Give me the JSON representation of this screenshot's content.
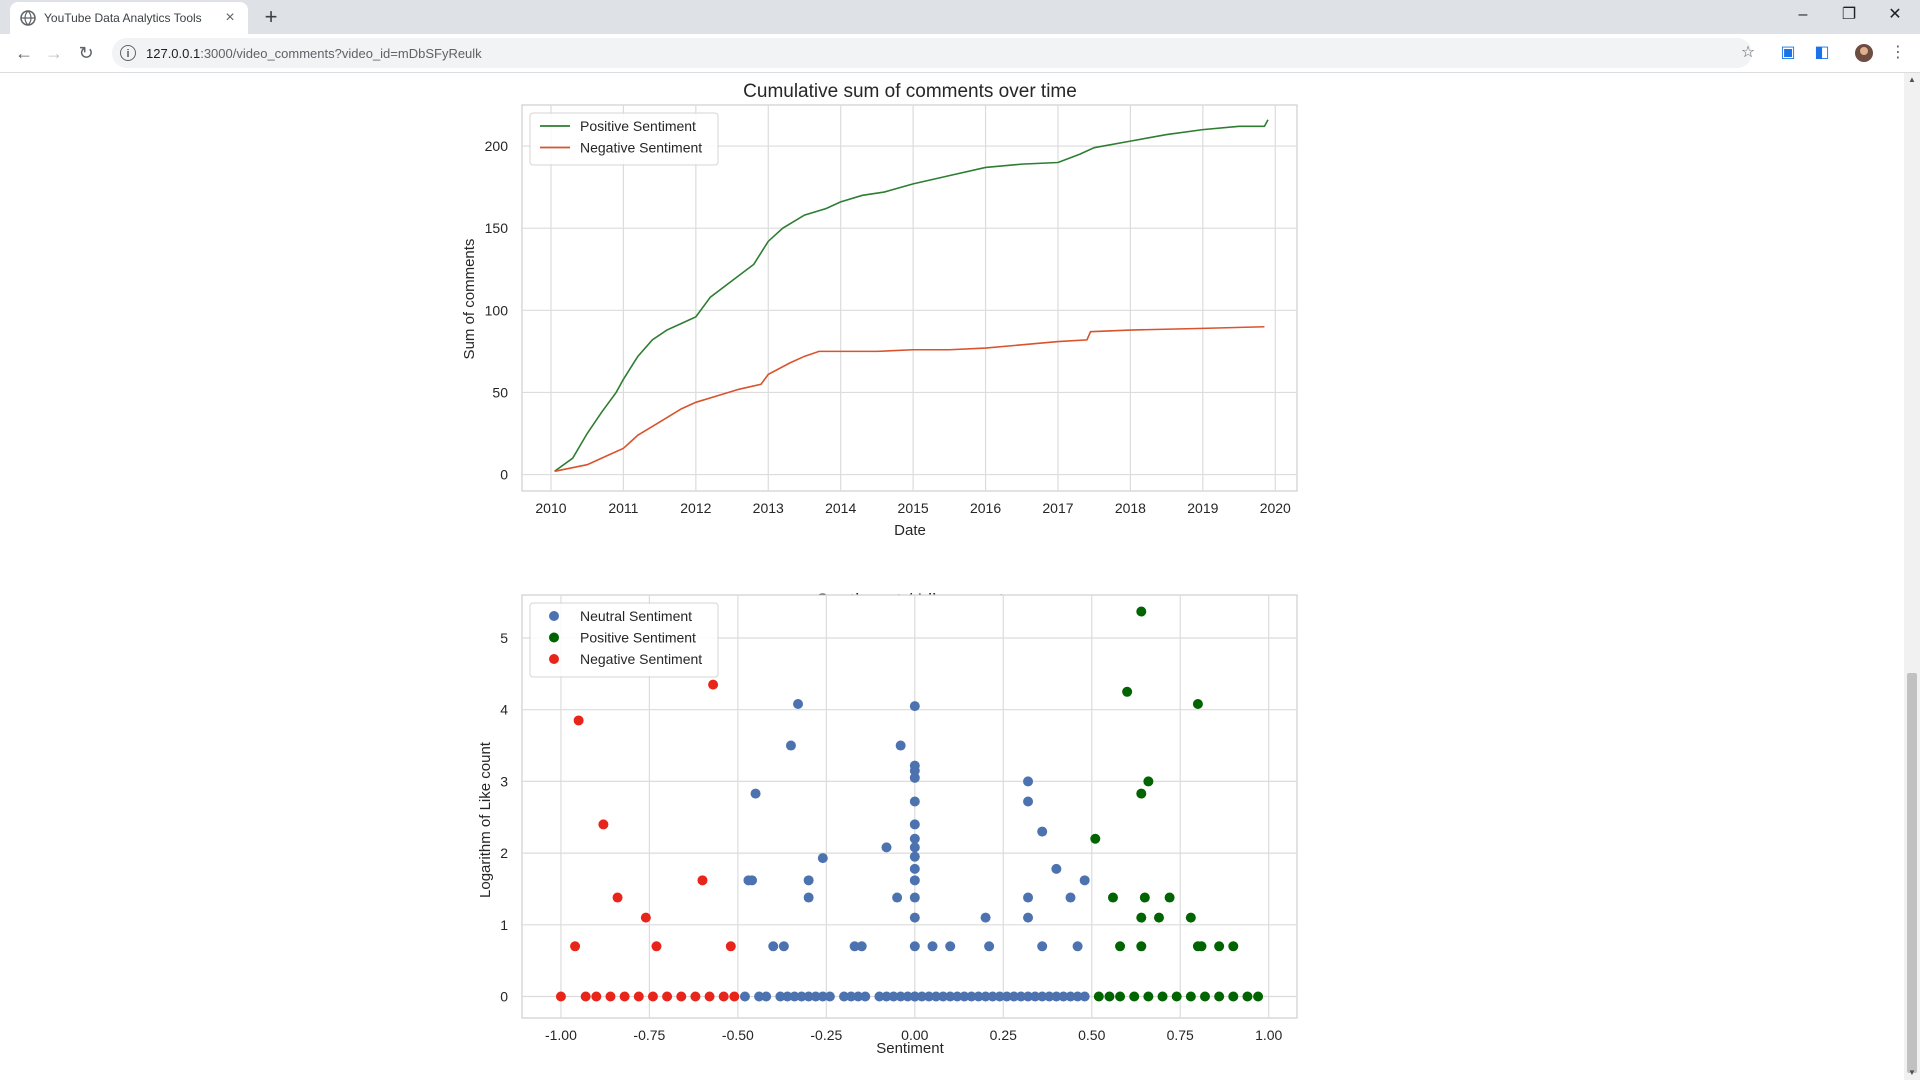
{
  "browser": {
    "tab_title": "YouTube Data Analytics Tools",
    "url_host": "127.0.0.1",
    "url_path": ":3000/video_comments?video_id=mDbSFyReulk"
  },
  "charts": [
    {
      "title": "Cumulative sum of comments over time",
      "xlabel": "Date",
      "ylabel": "Sum of comments",
      "legend": [
        "Positive Sentiment",
        "Negative Sentiment"
      ]
    },
    {
      "title": "Sentiment / Like count",
      "xlabel": "Sentiment",
      "ylabel": "Logarithm of Like count",
      "legend": [
        "Neutral Sentiment",
        "Positive Sentiment",
        "Negative Sentiment"
      ]
    }
  ],
  "chart_data": [
    {
      "type": "line",
      "title": "Cumulative sum of comments over time",
      "xlabel": "Date",
      "ylabel": "Sum of comments",
      "xlim": [
        2009.6,
        2020.3
      ],
      "ylim": [
        -10,
        225
      ],
      "xticks": [
        "2010",
        "2011",
        "2012",
        "2013",
        "2014",
        "2015",
        "2016",
        "2017",
        "2018",
        "2019",
        "2020"
      ],
      "yticks": [
        0,
        50,
        100,
        150,
        200
      ],
      "grid": true,
      "legend_position": "top-left",
      "series": [
        {
          "name": "Positive Sentiment",
          "color": "#2e7d32",
          "x": [
            2010.05,
            2010.3,
            2010.5,
            2010.7,
            2010.9,
            2011.0,
            2011.2,
            2011.4,
            2011.6,
            2011.8,
            2012.0,
            2012.2,
            2012.5,
            2012.8,
            2013.0,
            2013.2,
            2013.5,
            2013.8,
            2014.0,
            2014.3,
            2014.6,
            2015.0,
            2015.5,
            2016.0,
            2016.5,
            2017.0,
            2017.3,
            2017.5,
            2018.0,
            2018.5,
            2019.0,
            2019.5,
            2019.85,
            2019.9
          ],
          "y": [
            2,
            10,
            25,
            38,
            50,
            58,
            72,
            82,
            88,
            92,
            96,
            108,
            118,
            128,
            142,
            150,
            158,
            162,
            166,
            170,
            172,
            177,
            182,
            187,
            189,
            190,
            195,
            199,
            203,
            207,
            210,
            212,
            212,
            216
          ]
        },
        {
          "name": "Negative Sentiment",
          "color": "#d9532c",
          "x": [
            2010.05,
            2010.5,
            2010.8,
            2011.0,
            2011.2,
            2011.5,
            2011.8,
            2012.0,
            2012.3,
            2012.6,
            2012.9,
            2013.0,
            2013.3,
            2013.5,
            2013.7,
            2014.0,
            2014.5,
            2015.0,
            2015.5,
            2016.0,
            2016.5,
            2017.0,
            2017.4,
            2017.45,
            2018.0,
            2019.0,
            2019.85
          ],
          "y": [
            2,
            6,
            12,
            16,
            24,
            32,
            40,
            44,
            48,
            52,
            55,
            61,
            68,
            72,
            75,
            75,
            75,
            76,
            76,
            77,
            79,
            81,
            82,
            87,
            88,
            89,
            90
          ]
        }
      ]
    },
    {
      "type": "scatter",
      "title": "Sentiment / Like count",
      "xlabel": "Sentiment",
      "ylabel": "Logarithm of Like count",
      "xlim": [
        -1.11,
        1.08
      ],
      "ylim": [
        -0.3,
        5.6
      ],
      "xticks": [
        "-1.00",
        "-0.75",
        "-0.50",
        "-0.25",
        "0.00",
        "0.25",
        "0.50",
        "0.75",
        "1.00"
      ],
      "yticks": [
        0,
        1,
        2,
        3,
        4,
        5
      ],
      "grid": true,
      "legend_position": "top-left",
      "series": [
        {
          "name": "Neutral Sentiment",
          "color": "#4c72b0",
          "x": [
            -0.47,
            -0.46,
            -0.45,
            -0.4,
            -0.37,
            -0.35,
            -0.33,
            -0.3,
            -0.3,
            -0.26,
            -0.17,
            -0.15,
            -0.08,
            -0.05,
            -0.04,
            0,
            0,
            0,
            0,
            0,
            0,
            0,
            0,
            0,
            0,
            0,
            0,
            0,
            0,
            0,
            0,
            0.05,
            0.1,
            0.2,
            0.21,
            0.32,
            0.32,
            0.32,
            0.32,
            0.36,
            0.36,
            0.4,
            0.44,
            0.46,
            0.48,
            -0.48,
            -0.44,
            -0.42,
            -0.38,
            -0.36,
            -0.34,
            -0.32,
            -0.3,
            -0.28,
            -0.26,
            -0.24,
            -0.2,
            -0.18,
            -0.16,
            -0.14,
            -0.1,
            -0.08,
            -0.06,
            -0.04,
            -0.02,
            0.02,
            0.04,
            0.06,
            0.08,
            0.1,
            0.12,
            0.14,
            0.16,
            0.18,
            0.2,
            0.22,
            0.24,
            0.26,
            0.28,
            0.3,
            0.32,
            0.34,
            0.36,
            0.38,
            0.4,
            0.42,
            0.44,
            0.46,
            0.48
          ],
          "y": [
            1.62,
            1.62,
            2.83,
            0.7,
            0.7,
            3.5,
            4.08,
            1.62,
            1.38,
            1.93,
            0.7,
            0.7,
            2.08,
            1.38,
            3.5,
            4.05,
            3.22,
            3.15,
            3.05,
            2.72,
            2.4,
            2.2,
            2.08,
            1.95,
            1.78,
            1.62,
            1.38,
            1.1,
            0.7,
            0,
            0,
            0.7,
            0.7,
            1.1,
            0.7,
            3.0,
            2.72,
            1.38,
            1.1,
            2.3,
            0.7,
            1.78,
            1.38,
            0.7,
            1.62,
            0,
            0,
            0,
            0,
            0,
            0,
            0,
            0,
            0,
            0,
            0,
            0,
            0,
            0,
            0,
            0,
            0,
            0,
            0,
            0,
            0,
            0,
            0,
            0,
            0,
            0,
            0,
            0,
            0,
            0,
            0,
            0,
            0,
            0,
            0,
            0,
            0,
            0,
            0,
            0,
            0,
            0,
            0,
            0
          ]
        },
        {
          "name": "Positive Sentiment",
          "color": "#006400",
          "x": [
            0.64,
            0.6,
            0.8,
            0.66,
            0.64,
            0.51,
            0.56,
            0.65,
            0.72,
            0.64,
            0.69,
            0.78,
            0.58,
            0.64,
            0.8,
            0.81,
            0.86,
            0.9,
            0.52,
            0.55,
            0.58,
            0.62,
            0.66,
            0.7,
            0.74,
            0.78,
            0.82,
            0.86,
            0.9,
            0.94,
            0.97
          ],
          "y": [
            5.37,
            4.25,
            4.08,
            3.0,
            2.83,
            2.2,
            1.38,
            1.38,
            1.38,
            1.1,
            1.1,
            1.1,
            0.7,
            0.7,
            0.7,
            0.7,
            0.7,
            0.7,
            0,
            0,
            0,
            0,
            0,
            0,
            0,
            0,
            0,
            0,
            0,
            0,
            0
          ]
        },
        {
          "name": "Negative Sentiment",
          "color": "#e8251a",
          "x": [
            -0.57,
            -0.95,
            -0.88,
            -0.84,
            -0.6,
            -0.76,
            -0.96,
            -0.73,
            -0.52,
            -1.0,
            -0.93,
            -0.9,
            -0.86,
            -0.82,
            -0.78,
            -0.74,
            -0.7,
            -0.66,
            -0.62,
            -0.58,
            -0.54,
            -0.51
          ],
          "y": [
            4.35,
            3.85,
            2.4,
            1.38,
            1.62,
            1.1,
            0.7,
            0.7,
            0.7,
            0,
            0,
            0,
            0,
            0,
            0,
            0,
            0,
            0,
            0,
            0,
            0,
            0
          ]
        }
      ]
    }
  ]
}
